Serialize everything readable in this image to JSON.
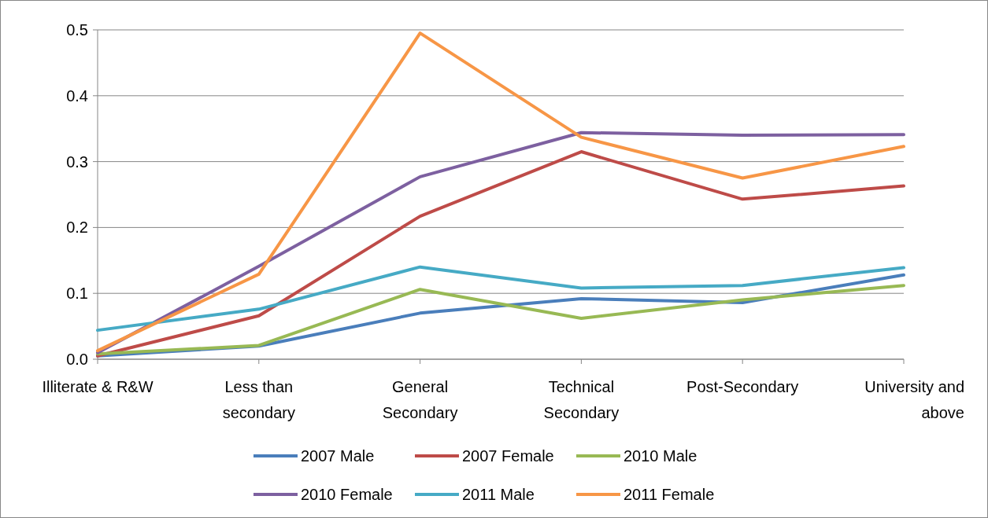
{
  "chart_data": {
    "type": "line",
    "categories": [
      "Illiterate & R&W",
      "Less than secondary",
      "General Secondary",
      "Technical Secondary",
      "Post-Secondary",
      "University and above"
    ],
    "series": [
      {
        "name": "2007 Male",
        "color": "#4a7ebb",
        "values": [
          0.005,
          0.02,
          0.07,
          0.092,
          0.086,
          0.128
        ]
      },
      {
        "name": "2007 Female",
        "color": "#be4b48",
        "values": [
          0.005,
          0.066,
          0.217,
          0.315,
          0.243,
          0.263
        ]
      },
      {
        "name": "2010 Male",
        "color": "#98b954",
        "values": [
          0.008,
          0.021,
          0.106,
          0.062,
          0.09,
          0.112
        ]
      },
      {
        "name": "2010 Female",
        "color": "#7d60a0",
        "values": [
          0.01,
          0.141,
          0.277,
          0.344,
          0.34,
          0.341
        ]
      },
      {
        "name": "2011 Male",
        "color": "#46aac5",
        "values": [
          0.044,
          0.076,
          0.14,
          0.108,
          0.112,
          0.139
        ]
      },
      {
        "name": "2011 Female",
        "color": "#f79646",
        "values": [
          0.013,
          0.129,
          0.495,
          0.337,
          0.275,
          0.323
        ]
      }
    ],
    "ylim": [
      0,
      0.5
    ],
    "yticks": [
      {
        "value": 0,
        "label": "0.0"
      },
      {
        "value": 0.1,
        "label": "0.1"
      },
      {
        "value": 0.2,
        "label": "0.2"
      },
      {
        "value": 0.3,
        "label": "0.3"
      },
      {
        "value": 0.4,
        "label": "0.4"
      },
      {
        "value": 0.5,
        "label": "0.5"
      }
    ],
    "grid": "y",
    "legend": "bottom",
    "marker": "none",
    "line_style": "solid"
  }
}
